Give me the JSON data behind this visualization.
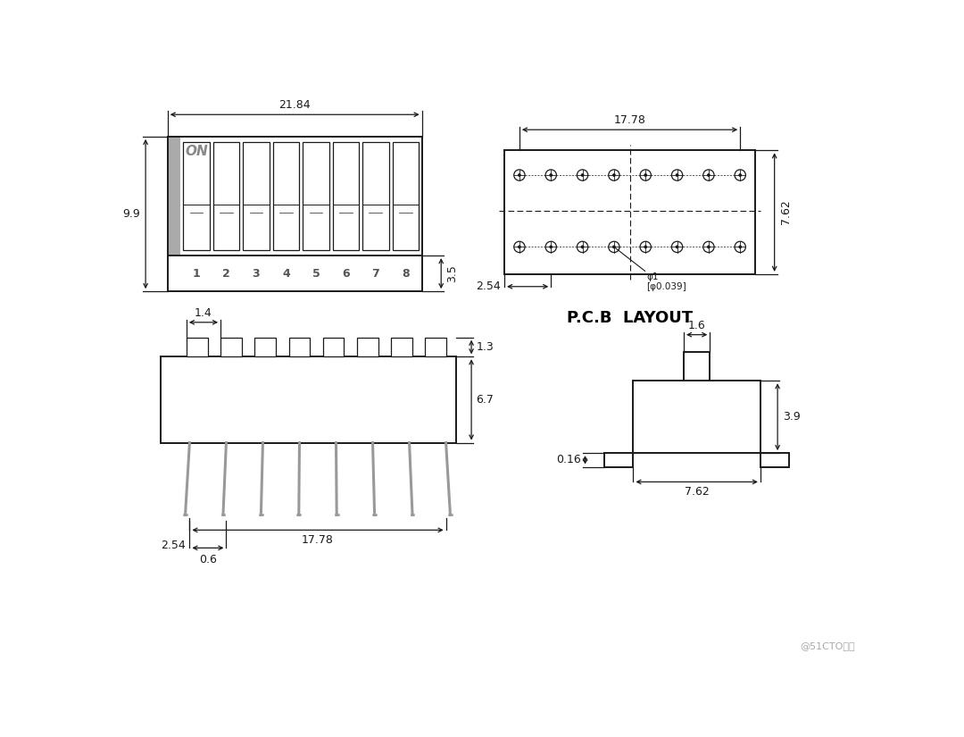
{
  "bg_color": "#ffffff",
  "line_color": "#1a1a1a",
  "dim_color": "#1a1a1a",
  "gray_color": "#888888",
  "on_color": "#999999",
  "watermark": "@51CTO博客",
  "top_left": {
    "width_label": "21.84",
    "height_label": "9.9",
    "bottom_label": "3.5"
  },
  "top_right": {
    "title": "P.C.B  LAYOUT",
    "width_label": "17.78",
    "height_label": "7.62",
    "pitch_label": "2.54"
  },
  "bottom_left": {
    "width_label": "17.78",
    "height_label": "6.7",
    "tab_width": "1.4",
    "tab_height": "1.3",
    "pitch": "2.54",
    "pin_width": "0.6"
  },
  "bottom_right": {
    "tab_width": "1.6",
    "body_width": "7.62",
    "body_height": "3.9",
    "pin_width": "0.16"
  }
}
